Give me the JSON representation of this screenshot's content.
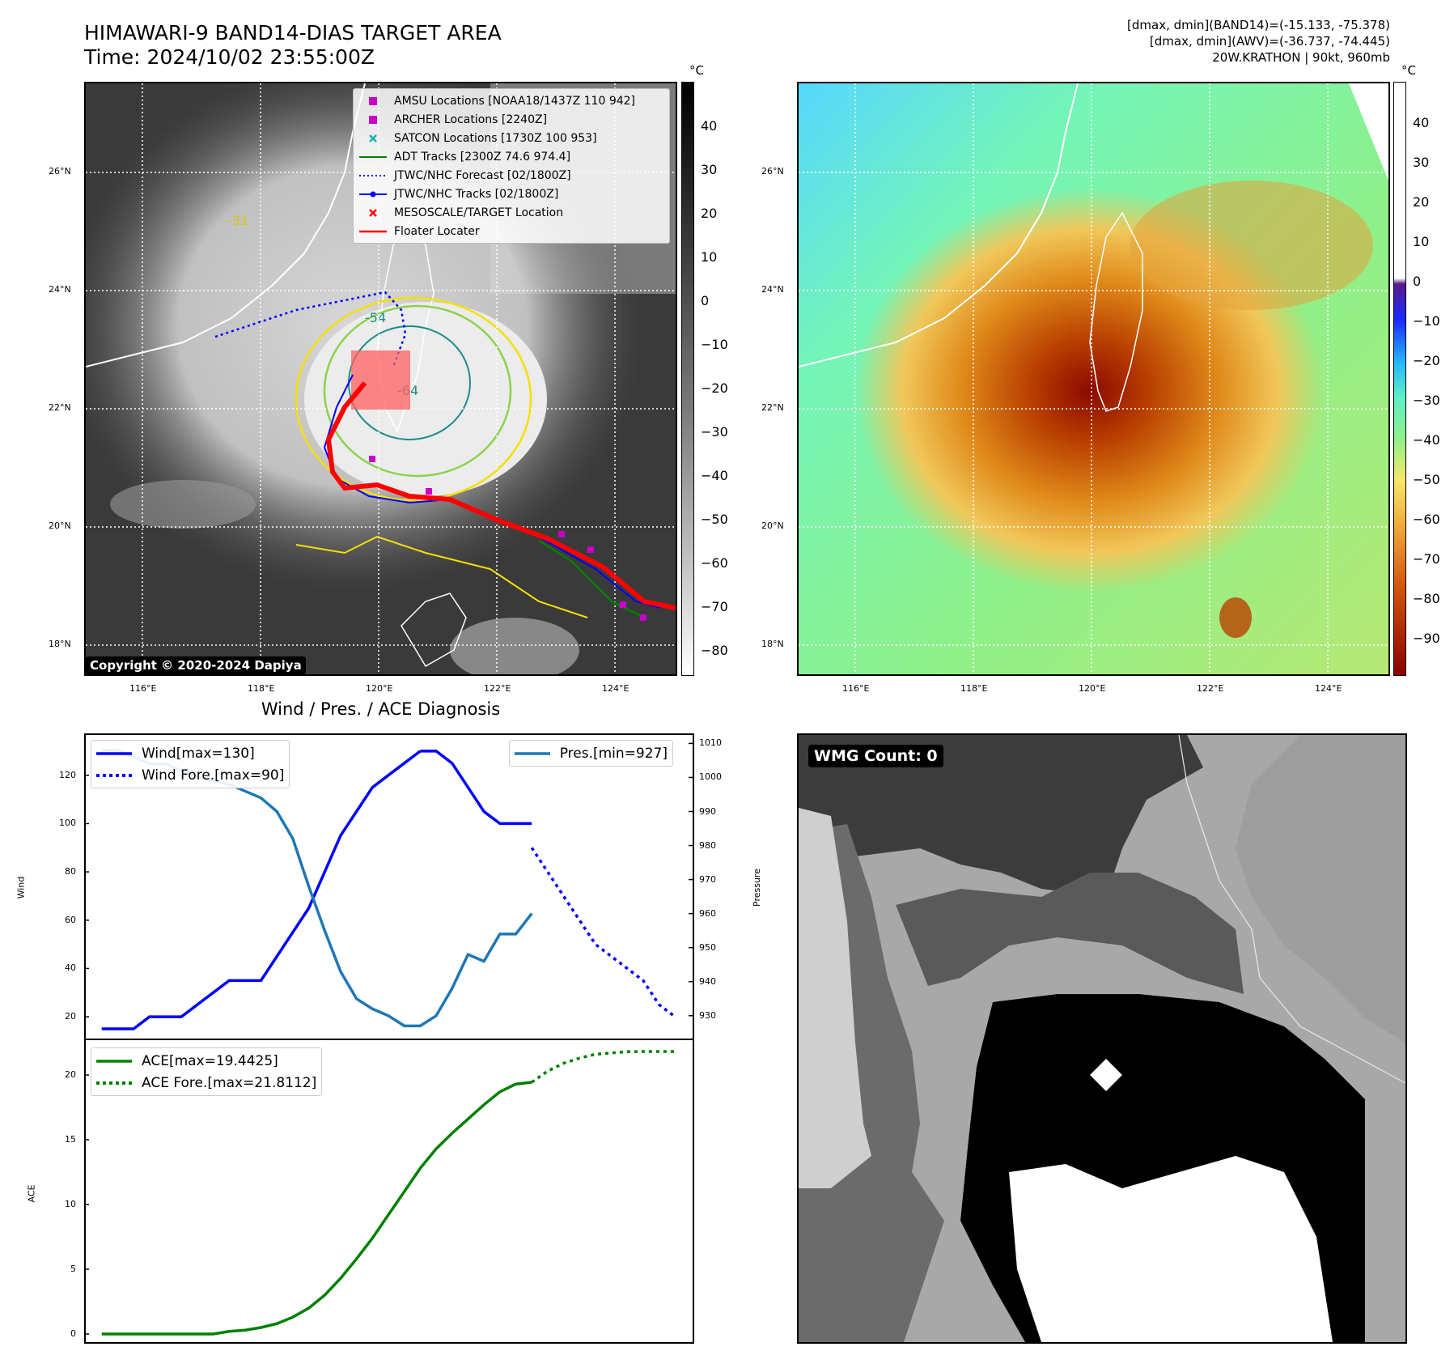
{
  "header": {
    "title_line1": "HIMAWARI-9 BAND14-DIAS TARGET AREA",
    "title_line2": "Time: 2024/10/02 23:55:00Z",
    "info_line1": "[dmax, dmin](BAND14)=(-15.133, -75.378)",
    "info_line2": "[dmax, dmin](AWV)=(-36.737, -74.445)",
    "info_line3": "20W.KRATHON | 90kt, 960mb"
  },
  "map": {
    "lat_labels": [
      "26°N",
      "24°N",
      "22°N",
      "20°N",
      "18°N"
    ],
    "lon_labels": [
      "116°E",
      "118°E",
      "120°E",
      "122°E",
      "124°E"
    ],
    "copyright": "Copyright © 2020-2024 Dapiya",
    "contour_labels": [
      "-64",
      "-54",
      "-31"
    ],
    "legend": [
      {
        "label": "AMSU Locations [NOAA18/1437Z 110 942]",
        "icon": "square-marker",
        "color": "#c800c8"
      },
      {
        "label": "ARCHER Locations [2240Z]",
        "icon": "square-marker",
        "color": "#c800c8"
      },
      {
        "label": "SATCON Locations [1730Z 100 953]",
        "icon": "x-marker",
        "color": "#1ab0b0"
      },
      {
        "label": "ADT Tracks [2300Z 74.6 974.4]",
        "icon": "solid-line",
        "color": "#008000"
      },
      {
        "label": "JTWC/NHC Forecast [02/1800Z]",
        "icon": "dotted-line",
        "color": "#0000ff"
      },
      {
        "label": "JTWC/NHC Tracks [02/1800Z]",
        "icon": "line-dot",
        "color": "#0000ff"
      },
      {
        "label": "MESOSCALE/TARGET Location",
        "icon": "x-marker",
        "color": "#ff0000"
      },
      {
        "label": "Floater Locater",
        "icon": "solid-line",
        "color": "#ff0000"
      }
    ]
  },
  "colorbar_ir": {
    "unit": "°C",
    "ticks": [
      "40",
      "30",
      "20",
      "10",
      "0",
      "−10",
      "−20",
      "−30",
      "−40",
      "−50",
      "−60",
      "−70",
      "−80"
    ]
  },
  "colorbar_wv": {
    "unit": "°C",
    "ticks": [
      "40",
      "30",
      "20",
      "10",
      "0",
      "−10",
      "−20",
      "−30",
      "−40",
      "−50",
      "−60",
      "−70",
      "−80",
      "−90"
    ]
  },
  "diagnosis": {
    "title": "Wind / Pres. / ACE Diagnosis",
    "wind_axis_label": "Wind",
    "pressure_axis_label": "Pressure",
    "ace_axis_label": "ACE",
    "wind_ticks": [
      "120",
      "100",
      "80",
      "60",
      "40",
      "20"
    ],
    "pressure_ticks": [
      "1010",
      "1000",
      "990",
      "980",
      "970",
      "960",
      "950",
      "940",
      "930"
    ],
    "ace_ticks": [
      "20",
      "15",
      "10",
      "5",
      "0"
    ],
    "legend_wind": "Wind[max=130]",
    "legend_wind_fore": "Wind Fore.[max=90]",
    "legend_pres": "Pres.[min=927]",
    "legend_ace": "ACE[max=19.4425]",
    "legend_ace_fore": "ACE Fore.[max=21.8112]"
  },
  "wmg": {
    "label": "WMG Count: 0"
  },
  "colors": {
    "wind": "#0000ff",
    "pressure": "#1f77b4",
    "ace": "#008000",
    "floater": "#ff0000"
  },
  "chart_data": [
    {
      "type": "line",
      "title": "Wind / Pres. / ACE Diagnosis",
      "ylabel": "Wind",
      "ylim": [
        12,
        136
      ],
      "x": [
        0,
        1,
        2,
        3,
        4,
        5,
        6,
        7,
        8,
        9,
        10,
        11,
        12,
        13,
        14,
        15,
        16,
        17,
        18,
        19,
        20,
        21,
        22,
        23,
        24,
        25,
        26,
        27,
        28,
        29
      ],
      "series": [
        {
          "name": "Wind[max=130]",
          "x": [
            0,
            1,
            2,
            3,
            4,
            5,
            6,
            7,
            8,
            9,
            10,
            11,
            12,
            13,
            14,
            15,
            16,
            17,
            18,
            19,
            20
          ],
          "values": [
            15,
            15,
            15,
            20,
            20,
            20,
            25,
            30,
            35,
            35,
            35,
            45,
            55,
            65,
            80,
            95,
            105,
            115,
            120,
            125,
            130
          ]
        },
        {
          "name": "Wind[max=130] (cont.)",
          "x": [
            20,
            21,
            22,
            23,
            24,
            25,
            26,
            27
          ],
          "values": [
            130,
            130,
            125,
            115,
            105,
            100,
            100,
            100
          ]
        },
        {
          "name": "Wind Fore.[max=90]",
          "x": [
            27,
            28,
            29,
            30,
            31,
            32,
            33,
            34,
            35,
            36
          ],
          "values": [
            90,
            80,
            70,
            60,
            50,
            45,
            40,
            35,
            25,
            20
          ]
        }
      ]
    },
    {
      "type": "line",
      "ylabel": "Pressure",
      "ylim": [
        924,
        1012
      ],
      "series": [
        {
          "name": "Pres.[min=927]",
          "x": [
            0,
            1,
            2,
            3,
            4,
            5,
            6,
            7,
            8,
            9,
            10,
            11,
            12,
            13,
            14,
            15,
            16,
            17,
            18,
            19,
            20,
            21,
            22,
            23,
            24,
            25,
            26,
            27
          ],
          "values": [
            1008,
            1008,
            1006,
            1004,
            1004,
            1002,
            1000,
            999,
            998,
            996,
            994,
            990,
            982,
            968,
            955,
            943,
            935,
            932,
            930,
            927,
            927,
            930,
            938,
            948,
            946,
            954,
            954,
            960
          ]
        }
      ]
    },
    {
      "type": "line",
      "ylabel": "ACE",
      "ylim": [
        -0.5,
        22.5
      ],
      "series": [
        {
          "name": "ACE[max=19.4425]",
          "x": [
            0,
            1,
            2,
            3,
            4,
            5,
            6,
            7,
            8,
            9,
            10,
            11,
            12,
            13,
            14,
            15,
            16,
            17,
            18,
            19,
            20,
            21,
            22,
            23,
            24,
            25,
            26,
            27
          ],
          "values": [
            0,
            0,
            0,
            0,
            0,
            0,
            0,
            0,
            0.2,
            0.3,
            0.5,
            0.8,
            1.3,
            2.0,
            3.0,
            4.3,
            5.8,
            7.4,
            9.2,
            11.0,
            12.8,
            14.3,
            15.5,
            16.6,
            17.7,
            18.7,
            19.3,
            19.44
          ]
        },
        {
          "name": "ACE Fore.[max=21.8112]",
          "x": [
            27,
            28,
            29,
            30,
            31,
            32,
            33,
            34,
            35,
            36
          ],
          "values": [
            19.44,
            20.3,
            20.9,
            21.3,
            21.6,
            21.7,
            21.8,
            21.81,
            21.81,
            21.81
          ]
        }
      ]
    }
  ]
}
